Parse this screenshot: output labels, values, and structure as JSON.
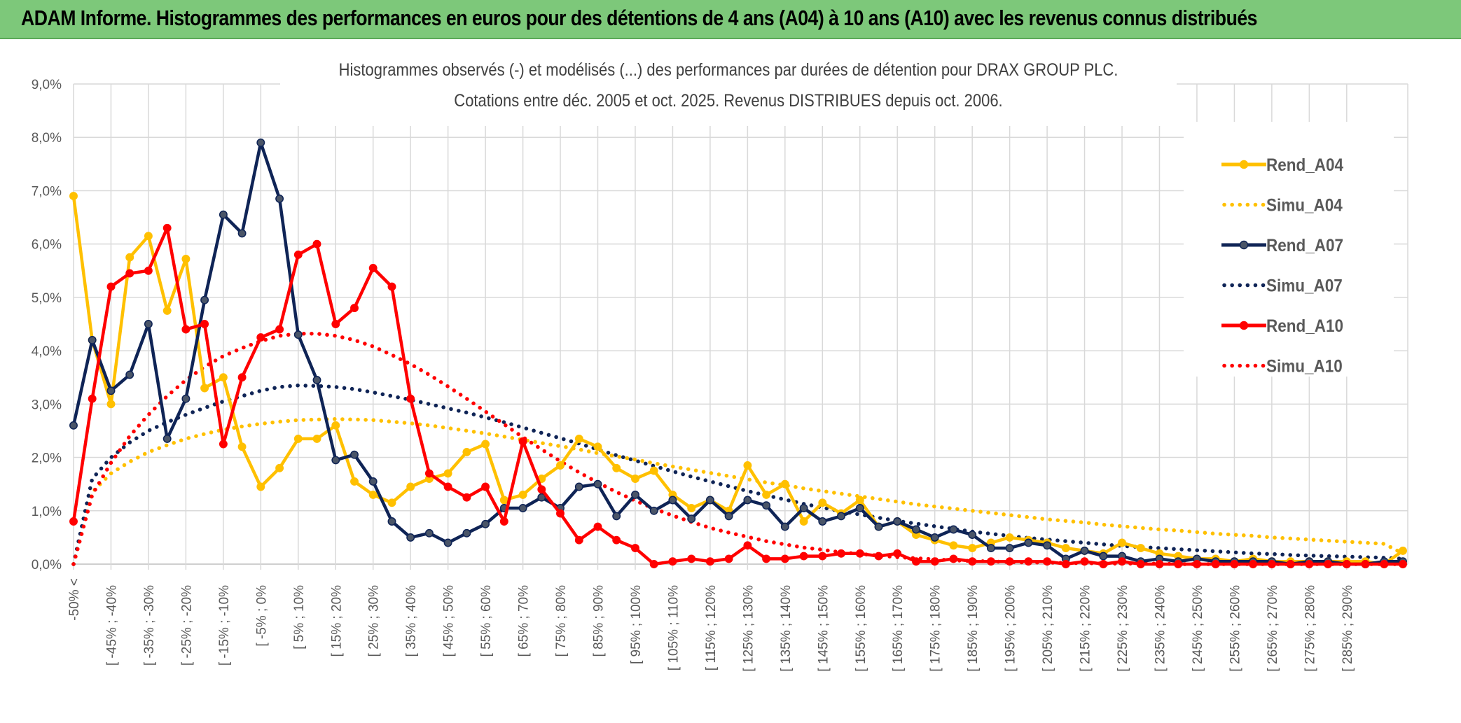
{
  "banner": {
    "title": "ADAM Informe. Histogrammes des performances en euros pour des détentions de 4 ans (A04) à 10 ans (A10) avec les revenus connus distribués"
  },
  "chart_data": {
    "type": "line",
    "title": "Histogrammes observés (-) et modélisés (...) des performances par durées de détention pour DRAX GROUP PLC.",
    "subtitle": "Cotations entre déc. 2005 et oct. 2025. Revenus DISTRIBUES depuis oct. 2006.",
    "ylim": [
      0,
      9
    ],
    "yticks": [
      "0,0%",
      "1,0%",
      "2,0%",
      "3,0%",
      "4,0%",
      "5,0%",
      "6,0%",
      "7,0%",
      "8,0%",
      "9,0%"
    ],
    "xtick_labels": [
      "-50% <",
      "[ -45% ; -40%",
      "[ -35% ; -30%",
      "[ -25% ; -20%",
      "[ -15% ; -10%",
      "[ -5% ; 0%",
      "[ 5% ; 10%",
      "[ 15% ; 20%",
      "[ 25% ; 30%",
      "[ 35% ; 40%",
      "[ 45% ; 50%",
      "[ 55% ; 60%",
      "[ 65% ; 70%",
      "[ 75% ; 80%",
      "[ 85% ; 90%",
      "[ 95% ; 100%",
      "[ 105% ; 110%",
      "[ 115% ; 120%",
      "[ 125% ; 130%",
      "[ 135% ; 140%",
      "[ 145% ; 150%",
      "[ 155% ; 160%",
      "[ 165% ; 170%",
      "[ 175% ; 180%",
      "[ 185% ; 190%",
      "[ 195% ; 200%",
      "[ 205% ; 210%",
      "[ 215% ; 220%",
      "[ 225% ; 230%",
      "[ 235% ; 240%",
      "[ 245% ; 250%",
      "[ 255% ; 260%",
      "[ 265% ; 270%",
      "[ 275% ; 280%",
      "[ 285% ; 290%"
    ],
    "legend_position": "top-right",
    "series": [
      {
        "name": "Rend_A04",
        "style": "solid",
        "color": "#ffc000",
        "values": [
          6.9,
          4.2,
          3.0,
          5.75,
          6.15,
          4.75,
          5.72,
          3.3,
          3.5,
          2.2,
          1.45,
          1.8,
          2.35,
          2.35,
          2.6,
          1.55,
          1.3,
          1.15,
          1.45,
          1.6,
          1.7,
          2.1,
          2.25,
          1.2,
          1.3,
          1.6,
          1.85,
          2.35,
          2.2,
          1.8,
          1.6,
          1.75,
          1.3,
          1.05,
          1.2,
          1.0,
          1.85,
          1.3,
          1.5,
          0.8,
          1.15,
          0.95,
          1.2,
          0.7,
          0.8,
          0.55,
          0.45,
          0.35,
          0.3,
          0.4,
          0.5,
          0.45,
          0.4,
          0.3,
          0.25,
          0.2,
          0.4,
          0.3,
          0.2,
          0.15,
          0.1,
          0.1,
          0.05,
          0.1,
          0.05,
          0.05,
          0.05,
          0.05,
          0.05,
          0.05,
          0.0,
          0.25
        ]
      },
      {
        "name": "Simu_A04",
        "style": "dotted",
        "color": "#ffc000",
        "values": [
          0.0,
          1.35,
          1.7,
          1.92,
          2.1,
          2.23,
          2.35,
          2.44,
          2.52,
          2.58,
          2.63,
          2.67,
          2.7,
          2.71,
          2.72,
          2.71,
          2.7,
          2.67,
          2.64,
          2.6,
          2.55,
          2.5,
          2.45,
          2.39,
          2.33,
          2.27,
          2.21,
          2.15,
          2.08,
          2.02,
          1.96,
          1.89,
          1.83,
          1.77,
          1.71,
          1.65,
          1.59,
          1.53,
          1.48,
          1.42,
          1.37,
          1.32,
          1.27,
          1.22,
          1.17,
          1.12,
          1.08,
          1.04,
          1.0,
          0.96,
          0.92,
          0.88,
          0.84,
          0.81,
          0.78,
          0.74,
          0.71,
          0.68,
          0.65,
          0.63,
          0.6,
          0.57,
          0.55,
          0.53,
          0.5,
          0.48,
          0.46,
          0.44,
          0.42,
          0.4,
          0.38,
          0.2
        ]
      },
      {
        "name": "Rend_A07",
        "style": "solid",
        "color": "#0f2456",
        "values": [
          2.6,
          4.2,
          3.25,
          3.55,
          4.5,
          2.35,
          3.1,
          4.95,
          6.55,
          6.2,
          7.9,
          6.85,
          4.3,
          3.45,
          1.95,
          2.05,
          1.55,
          0.8,
          0.5,
          0.58,
          0.4,
          0.58,
          0.75,
          1.05,
          1.05,
          1.25,
          1.05,
          1.45,
          1.5,
          0.9,
          1.3,
          1.0,
          1.2,
          0.85,
          1.2,
          0.9,
          1.2,
          1.1,
          0.7,
          1.05,
          0.8,
          0.9,
          1.05,
          0.7,
          0.8,
          0.65,
          0.5,
          0.65,
          0.55,
          0.3,
          0.3,
          0.4,
          0.35,
          0.1,
          0.25,
          0.15,
          0.15,
          0.05,
          0.1,
          0.05,
          0.1,
          0.05,
          0.05,
          0.05,
          0.05,
          0.0,
          0.05,
          0.05,
          0.0,
          0.0,
          0.05,
          0.05
        ]
      },
      {
        "name": "Simu_A07",
        "style": "dotted",
        "color": "#0f2456",
        "values": [
          0.0,
          1.6,
          2.0,
          2.28,
          2.5,
          2.66,
          2.8,
          2.93,
          3.05,
          3.15,
          3.25,
          3.32,
          3.35,
          3.34,
          3.32,
          3.28,
          3.22,
          3.15,
          3.08,
          3.0,
          2.92,
          2.84,
          2.75,
          2.66,
          2.56,
          2.46,
          2.36,
          2.26,
          2.15,
          2.04,
          1.94,
          1.84,
          1.74,
          1.64,
          1.55,
          1.46,
          1.37,
          1.29,
          1.21,
          1.13,
          1.06,
          0.99,
          0.93,
          0.87,
          0.81,
          0.76,
          0.71,
          0.66,
          0.61,
          0.57,
          0.53,
          0.49,
          0.46,
          0.43,
          0.4,
          0.37,
          0.34,
          0.32,
          0.3,
          0.28,
          0.26,
          0.24,
          0.22,
          0.2,
          0.19,
          0.17,
          0.16,
          0.15,
          0.14,
          0.13,
          0.12,
          0.1
        ]
      },
      {
        "name": "Rend_A10",
        "style": "solid",
        "color": "#ff0000",
        "values": [
          0.8,
          3.1,
          5.2,
          5.45,
          5.5,
          6.3,
          4.4,
          4.5,
          2.25,
          3.5,
          4.25,
          4.4,
          5.8,
          6.0,
          4.5,
          4.8,
          5.55,
          5.2,
          3.1,
          1.7,
          1.45,
          1.25,
          1.45,
          0.8,
          2.3,
          1.4,
          0.95,
          0.45,
          0.7,
          0.45,
          0.3,
          0.0,
          0.05,
          0.1,
          0.05,
          0.1,
          0.35,
          0.1,
          0.1,
          0.15,
          0.15,
          0.2,
          0.2,
          0.15,
          0.2,
          0.05,
          0.05,
          0.1,
          0.05,
          0.05,
          0.05,
          0.05,
          0.05,
          0.0,
          0.05,
          0.0,
          0.05,
          0.0,
          0.0,
          0.0,
          0.0,
          0.0,
          0.0,
          0.0,
          0.0,
          0.0,
          0.0,
          0.0,
          0.0,
          0.0,
          0.0,
          0.0
        ]
      },
      {
        "name": "Simu_A10",
        "style": "dotted",
        "color": "#ff0000",
        "values": [
          0.0,
          1.3,
          1.9,
          2.4,
          2.8,
          3.15,
          3.45,
          3.7,
          3.9,
          4.05,
          4.18,
          4.28,
          4.32,
          4.32,
          4.28,
          4.2,
          4.08,
          3.92,
          3.75,
          3.55,
          3.33,
          3.1,
          2.86,
          2.62,
          2.38,
          2.15,
          1.93,
          1.72,
          1.53,
          1.35,
          1.19,
          1.04,
          0.91,
          0.79,
          0.68,
          0.59,
          0.51,
          0.43,
          0.37,
          0.31,
          0.27,
          0.22,
          0.19,
          0.16,
          0.13,
          0.11,
          0.09,
          0.07,
          0.06,
          0.05,
          0.04,
          0.03,
          0.03,
          0.02,
          0.02,
          0.01,
          0.01,
          0.01,
          0.01,
          0.0,
          0.0,
          0.0,
          0.0,
          0.0,
          0.0,
          0.0,
          0.0,
          0.0,
          0.0,
          0.0,
          0.0,
          0.0
        ]
      }
    ]
  }
}
